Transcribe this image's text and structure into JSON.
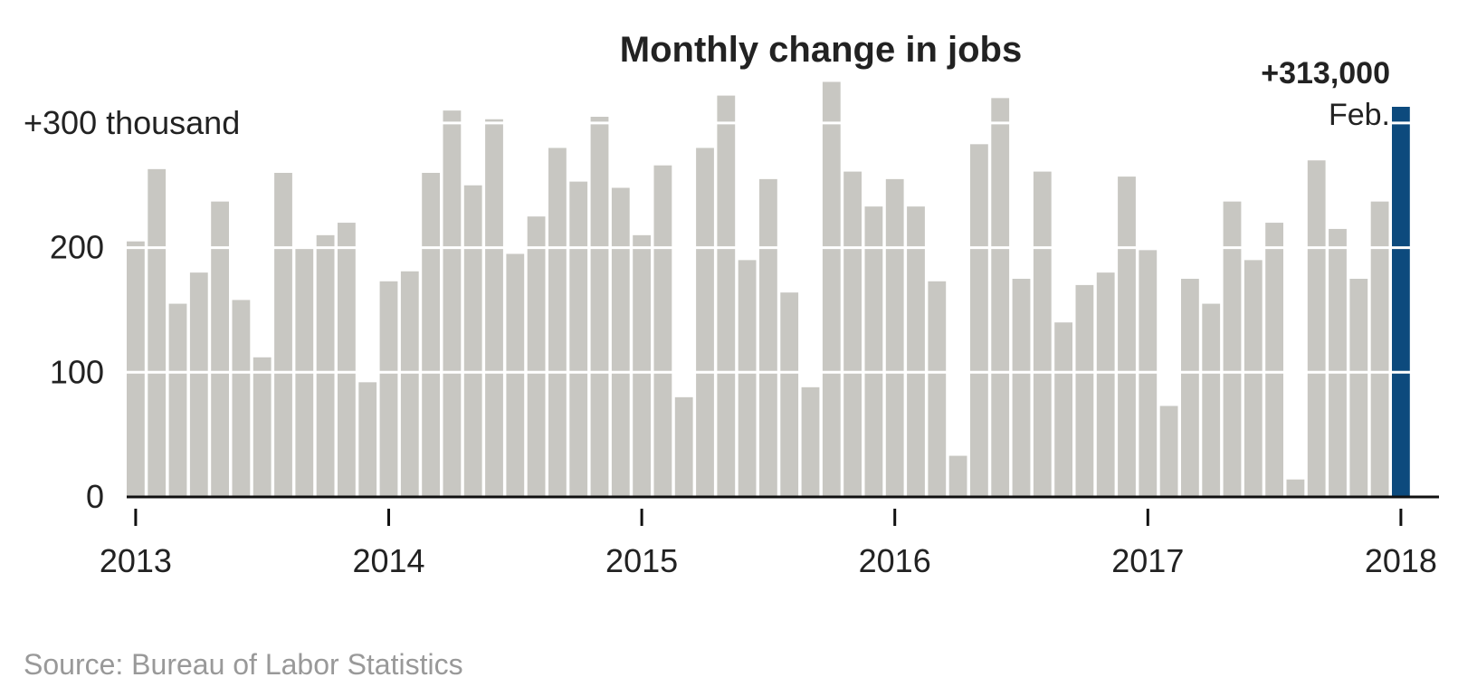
{
  "chart_data": {
    "type": "bar",
    "title": "Monthly change in jobs",
    "ylim": [
      0,
      340
    ],
    "y_ticks": [
      {
        "value": 0,
        "label": "0"
      },
      {
        "value": 100,
        "label": "100"
      },
      {
        "value": 200,
        "label": "200"
      },
      {
        "value": 300,
        "label": "+300 thousand"
      }
    ],
    "x_ticks": [
      {
        "index": 0,
        "label": "2013"
      },
      {
        "index": 12,
        "label": "2014"
      },
      {
        "index": 24,
        "label": "2015"
      },
      {
        "index": 36,
        "label": "2016"
      },
      {
        "index": 48,
        "label": "2017"
      },
      {
        "index": 60,
        "label": "2018"
      }
    ],
    "start_month": "2013-01",
    "values": [
      205,
      263,
      155,
      180,
      237,
      158,
      112,
      260,
      200,
      210,
      220,
      92,
      173,
      181,
      260,
      310,
      250,
      303,
      195,
      225,
      280,
      253,
      305,
      248,
      210,
      266,
      80,
      280,
      322,
      190,
      255,
      164,
      88,
      333,
      261,
      233,
      255,
      233,
      173,
      33,
      283,
      320,
      175,
      261,
      140,
      170,
      180,
      257,
      198,
      73,
      175,
      155,
      237,
      190,
      220,
      14,
      270,
      215,
      175,
      237,
      313
    ],
    "highlight_index": 60,
    "bar_color": "#c8c7c2",
    "highlight_color": "#0d4a7d",
    "grid": true,
    "callout": {
      "value_label": "+313,000",
      "month_label": "Feb."
    },
    "source": "Source: Bureau of Labor Statistics"
  }
}
